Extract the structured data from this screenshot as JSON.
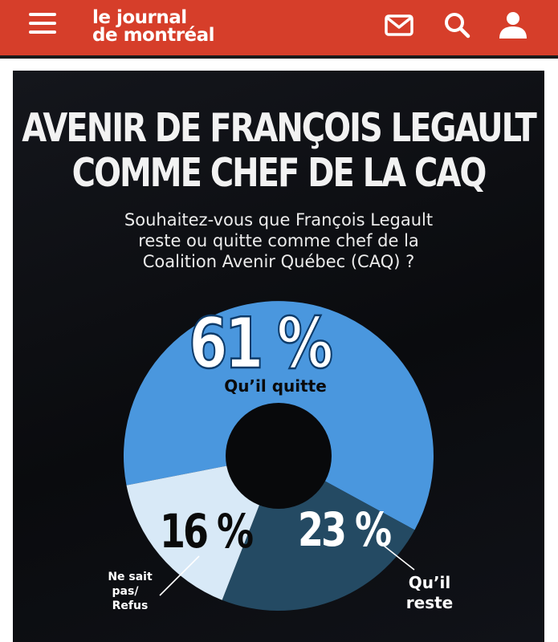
{
  "header": {
    "logo_line1": "le journal",
    "logo_line2": "de montréal",
    "icons": [
      "menu-icon",
      "mail-icon",
      "search-icon",
      "user-icon"
    ],
    "bar_color": "#d63e2a"
  },
  "chart_data": {
    "type": "pie",
    "title_line1": "AVENIR DE FRANÇOIS LEGAULT",
    "title_line2": "COMME CHEF DE LA CAQ",
    "subtitle_line1": "Souhaitez-vous que François Legault",
    "subtitle_line2": "reste ou quitte comme chef de la",
    "subtitle_line3": "Coalition Avenir Québec (CAQ) ?",
    "slices": [
      {
        "label": "Qu’il quitte",
        "value": 61,
        "display": "61 %",
        "color": "#4a97de"
      },
      {
        "label": "Qu’il reste",
        "value": 23,
        "display": "23 %",
        "color": "#244a63"
      },
      {
        "label": "Ne sait pas/ Refus",
        "value": 16,
        "display": "16 %",
        "color": "#d8e9f7"
      }
    ],
    "labels": {
      "quitte": "Qu’il quitte",
      "reste_line1": "Qu’il",
      "reste_line2": "reste",
      "nsp_line1": "Ne sait",
      "nsp_line2": "pas/",
      "nsp_line3": "Refus"
    },
    "donut": true
  }
}
